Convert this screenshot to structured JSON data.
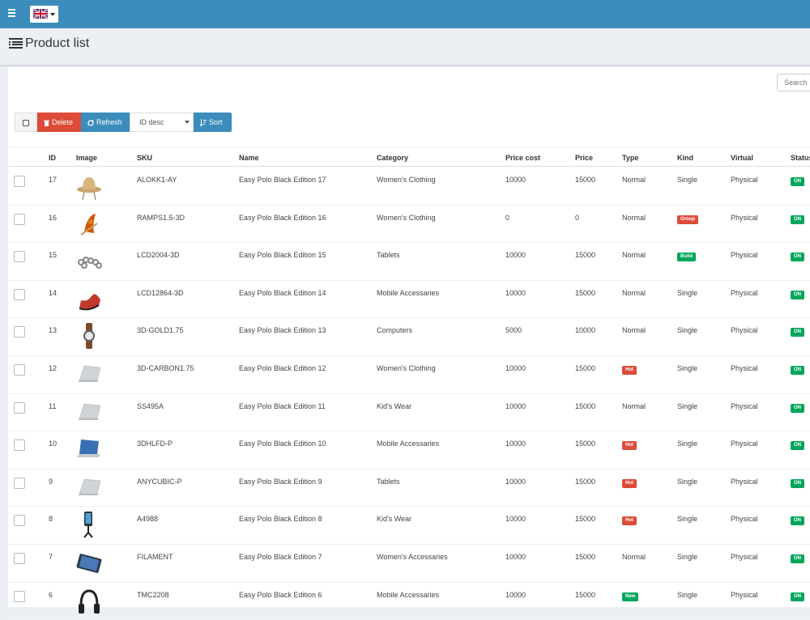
{
  "topbar": {
    "menu_icon": "hamburger-icon",
    "language_icon": "uk-flag-icon"
  },
  "page": {
    "title": "Product list",
    "title_icon": "list-icon"
  },
  "search": {
    "placeholder": "Search"
  },
  "toolbar": {
    "delete_label": "Delete",
    "refresh_label": "Refresh",
    "sort_select_value": "ID desc",
    "sort_label": "Sort"
  },
  "table": {
    "headers": {
      "id": "ID",
      "image": "Image",
      "sku": "SKU",
      "name": "Name",
      "category": "Category",
      "price_cost": "Price cost",
      "price": "Price",
      "type": "Type",
      "kind": "Kind",
      "virtual": "Virtual",
      "status": "Status"
    },
    "rows": [
      {
        "id": "17",
        "sku": "ALOKK1-AY",
        "name": "Easy Polo Black Edition 17",
        "category": "Women's Clothing",
        "price_cost": "10000",
        "price": "15000",
        "type": "Normal",
        "type_badge": false,
        "kind": "Single",
        "kind_badge": false,
        "virtual": "Physical",
        "status": "ON",
        "image": "hat"
      },
      {
        "id": "16",
        "sku": "RAMPS1.5-3D",
        "name": "Easy Polo Black Edition 16",
        "category": "Women's Clothing",
        "price_cost": "0",
        "price": "0",
        "type": "Normal",
        "type_badge": false,
        "kind": "Group",
        "kind_badge": "group",
        "virtual": "Physical",
        "status": "ON",
        "image": "accessory"
      },
      {
        "id": "15",
        "sku": "LCD2004-3D",
        "name": "Easy Polo Black Edition 15",
        "category": "Tablets",
        "price_cost": "10000",
        "price": "15000",
        "type": "Normal",
        "type_badge": false,
        "kind": "Build",
        "kind_badge": "build",
        "virtual": "Physical",
        "status": "ON",
        "image": "bracelet"
      },
      {
        "id": "14",
        "sku": "LCD12864-3D",
        "name": "Easy Polo Black Edition 14",
        "category": "Mobile Accessaries",
        "price_cost": "10000",
        "price": "15000",
        "type": "Normal",
        "type_badge": false,
        "kind": "Single",
        "kind_badge": false,
        "virtual": "Physical",
        "status": "ON",
        "image": "shoe"
      },
      {
        "id": "13",
        "sku": "3D-GOLD1.75",
        "name": "Easy Polo Black Edition 13",
        "category": "Computers",
        "price_cost": "5000",
        "price": "10000",
        "type": "Normal",
        "type_badge": false,
        "kind": "Single",
        "kind_badge": false,
        "virtual": "Physical",
        "status": "ON",
        "image": "watch"
      },
      {
        "id": "12",
        "sku": "3D-CARBON1.75",
        "name": "Easy Polo Black Edition 12",
        "category": "Women's Clothing",
        "price_cost": "10000",
        "price": "15000",
        "type": "Hot",
        "type_badge": "hot",
        "kind": "Single",
        "kind_badge": false,
        "virtual": "Physical",
        "status": "ON",
        "image": "laptop"
      },
      {
        "id": "11",
        "sku": "SS495A",
        "name": "Easy Polo Black Edition 11",
        "category": "Kid's Wear",
        "price_cost": "10000",
        "price": "15000",
        "type": "Normal",
        "type_badge": false,
        "kind": "Single",
        "kind_badge": false,
        "virtual": "Physical",
        "status": "ON",
        "image": "laptop"
      },
      {
        "id": "10",
        "sku": "3DHLFD-P",
        "name": "Easy Polo Black Edition 10",
        "category": "Mobile Accessaries",
        "price_cost": "10000",
        "price": "15000",
        "type": "Hot",
        "type_badge": "hot",
        "kind": "Single",
        "kind_badge": false,
        "virtual": "Physical",
        "status": "ON",
        "image": "laptop-blue"
      },
      {
        "id": "9",
        "sku": "ANYCUBIC-P",
        "name": "Easy Polo Black Edition 9",
        "category": "Tablets",
        "price_cost": "10000",
        "price": "15000",
        "type": "Hot",
        "type_badge": "hot",
        "kind": "Single",
        "kind_badge": false,
        "virtual": "Physical",
        "status": "ON",
        "image": "laptop"
      },
      {
        "id": "8",
        "sku": "A4988",
        "name": "Easy Polo Black Edition 8",
        "category": "Kid's Wear",
        "price_cost": "10000",
        "price": "15000",
        "type": "Hot",
        "type_badge": "hot",
        "kind": "Single",
        "kind_badge": false,
        "virtual": "Physical",
        "status": "ON",
        "image": "phone-holder"
      },
      {
        "id": "7",
        "sku": "FILAMENT",
        "name": "Easy Polo Black Edition 7",
        "category": "Women's Accessaries",
        "price_cost": "10000",
        "price": "15000",
        "type": "Normal",
        "type_badge": false,
        "kind": "Single",
        "kind_badge": false,
        "virtual": "Physical",
        "status": "ON",
        "image": "tablet"
      },
      {
        "id": "6",
        "sku": "TMC2208",
        "name": "Easy Polo Black Edition 6",
        "category": "Mobile Accessaries",
        "price_cost": "10000",
        "price": "15000",
        "type": "New",
        "type_badge": "new",
        "kind": "Single",
        "kind_badge": false,
        "virtual": "Physical",
        "status": "ON",
        "image": "headphones"
      }
    ]
  },
  "colors": {
    "topbar": "#3c8dbc",
    "danger": "#dd4b39",
    "primary": "#3c8dbc",
    "success": "#00a65a"
  }
}
